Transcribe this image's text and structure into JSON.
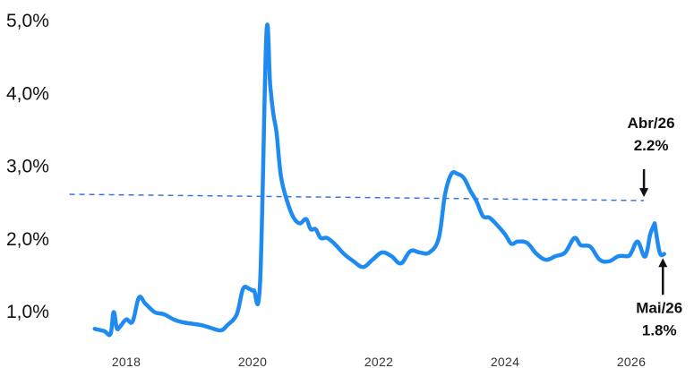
{
  "chart_data": {
    "type": "line",
    "title": "",
    "xlabel": "",
    "ylabel": "",
    "xlim": [
      2017.1,
      2027.05
    ],
    "ylim": [
      0.5,
      5.0
    ],
    "y_ticks": [
      {
        "value": 1.0,
        "label": "1,0%"
      },
      {
        "value": 2.0,
        "label": "2,0%"
      },
      {
        "value": 3.0,
        "label": "3,0%"
      },
      {
        "value": 4.0,
        "label": "4,0%"
      },
      {
        "value": 5.0,
        "label": "5,0%"
      }
    ],
    "x_ticks": [
      {
        "value": 2018,
        "label": "2018"
      },
      {
        "value": 2020,
        "label": "2020"
      },
      {
        "value": 2022,
        "label": "2022"
      },
      {
        "value": 2024,
        "label": "2024"
      },
      {
        "value": 2026,
        "label": "2026"
      }
    ],
    "grid": false,
    "legend": "none",
    "series": [
      {
        "color": "#1f8bf0",
        "x": [
          2017.5,
          2017.65,
          2017.75,
          2017.8,
          2017.85,
          2017.9,
          2018.0,
          2018.1,
          2018.2,
          2018.3,
          2018.45,
          2018.6,
          2018.75,
          2018.9,
          2019.05,
          2019.2,
          2019.35,
          2019.5,
          2019.6,
          2019.75,
          2019.85,
          2019.95,
          2020.02,
          2020.12,
          2020.22,
          2020.28,
          2020.33,
          2020.38,
          2020.45,
          2020.55,
          2020.65,
          2020.75,
          2020.85,
          2020.92,
          2021.0,
          2021.08,
          2021.18,
          2021.3,
          2021.45,
          2021.6,
          2021.75,
          2021.9,
          2022.05,
          2022.2,
          2022.35,
          2022.5,
          2022.65,
          2022.8,
          2022.95,
          2023.05,
          2023.15,
          2023.25,
          2023.35,
          2023.45,
          2023.55,
          2023.65,
          2023.75,
          2023.85,
          2024.0,
          2024.1,
          2024.2,
          2024.35,
          2024.5,
          2024.65,
          2024.8,
          2024.95,
          2025.1,
          2025.2,
          2025.35,
          2025.5,
          2025.65,
          2025.8,
          2025.95,
          2026.0,
          2026.1,
          2026.2,
          2026.25,
          2026.3,
          2026.37
        ],
        "values": [
          0.75,
          0.72,
          0.68,
          0.98,
          0.76,
          0.78,
          0.88,
          0.85,
          1.18,
          1.1,
          0.98,
          0.95,
          0.88,
          0.84,
          0.82,
          0.8,
          0.76,
          0.73,
          0.8,
          0.95,
          1.3,
          1.3,
          1.28,
          1.4,
          4.8,
          4.1,
          3.7,
          3.45,
          2.85,
          2.5,
          2.28,
          2.2,
          2.26,
          2.12,
          2.12,
          2.0,
          2.0,
          1.92,
          1.78,
          1.68,
          1.6,
          1.7,
          1.8,
          1.75,
          1.65,
          1.82,
          1.8,
          1.8,
          2.0,
          2.6,
          2.88,
          2.88,
          2.82,
          2.65,
          2.5,
          2.3,
          2.28,
          2.2,
          2.05,
          1.92,
          1.95,
          1.93,
          1.78,
          1.7,
          1.75,
          1.8,
          2.0,
          1.9,
          1.88,
          1.7,
          1.68,
          1.75,
          1.75,
          1.8,
          1.95,
          1.75,
          1.82,
          2.05,
          2.2
        ]
      },
      {
        "color": "#1f8bf0",
        "x": [
          2026.37,
          2026.45,
          2026.52
        ],
        "values": [
          2.2,
          1.8,
          1.78
        ]
      }
    ],
    "reference_line": {
      "y": 2.6,
      "x_start": 2017.1,
      "x_end": 2026.2,
      "style": "dashed",
      "color": "#3a74e0"
    },
    "annotations": [
      {
        "name": "abr-26",
        "lines": [
          "Abr/26",
          "2.2%"
        ],
        "x": 2026.2,
        "y": 2.55,
        "label_position": "above"
      },
      {
        "name": "mai-26",
        "lines": [
          "Mai/26",
          "1.8%"
        ],
        "x": 2026.5,
        "y": 1.76,
        "label_position": "below"
      }
    ]
  }
}
